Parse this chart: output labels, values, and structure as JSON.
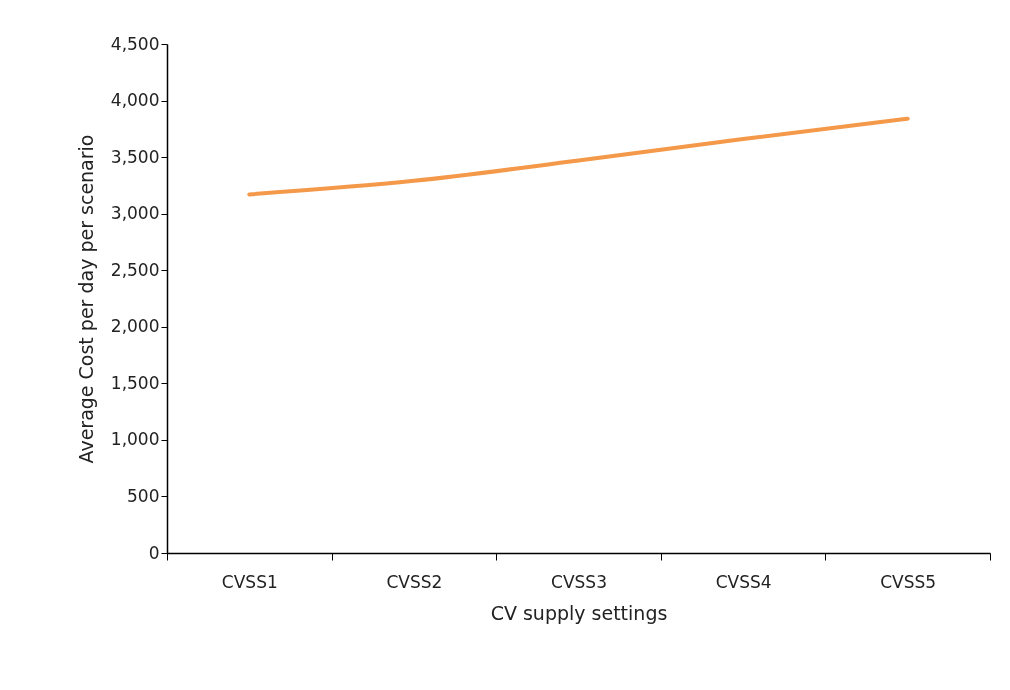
{
  "chart_data": {
    "type": "line",
    "xlabel": "CV supply settings",
    "ylabel": "Average Cost per day per scenario",
    "categories": [
      "CVSS1",
      "CVSS2",
      "CVSS3",
      "CVSS4",
      "CVSS5"
    ],
    "series": [
      {
        "color": "#f4984a",
        "values": [
          3170,
          3290,
          3470,
          3660,
          3840
        ]
      }
    ],
    "ylim": [
      0,
      4500
    ],
    "yticks": [
      0,
      {
        "value": 500,
        "label": "500"
      },
      {
        "value": 1000,
        "label": "1,000"
      },
      {
        "value": 1500,
        "label": "1,500"
      },
      {
        "value": 2000,
        "label": "2,000"
      },
      {
        "value": 2500,
        "label": "2,500"
      },
      {
        "value": 3000,
        "label": "3,000"
      },
      {
        "value": 3500,
        "label": "3,500"
      },
      {
        "value": 4000,
        "label": "4,000"
      },
      {
        "value": 4500,
        "label": "4,500"
      }
    ],
    "grid": false,
    "legend": false,
    "marker": "none",
    "line_style": "solid"
  }
}
